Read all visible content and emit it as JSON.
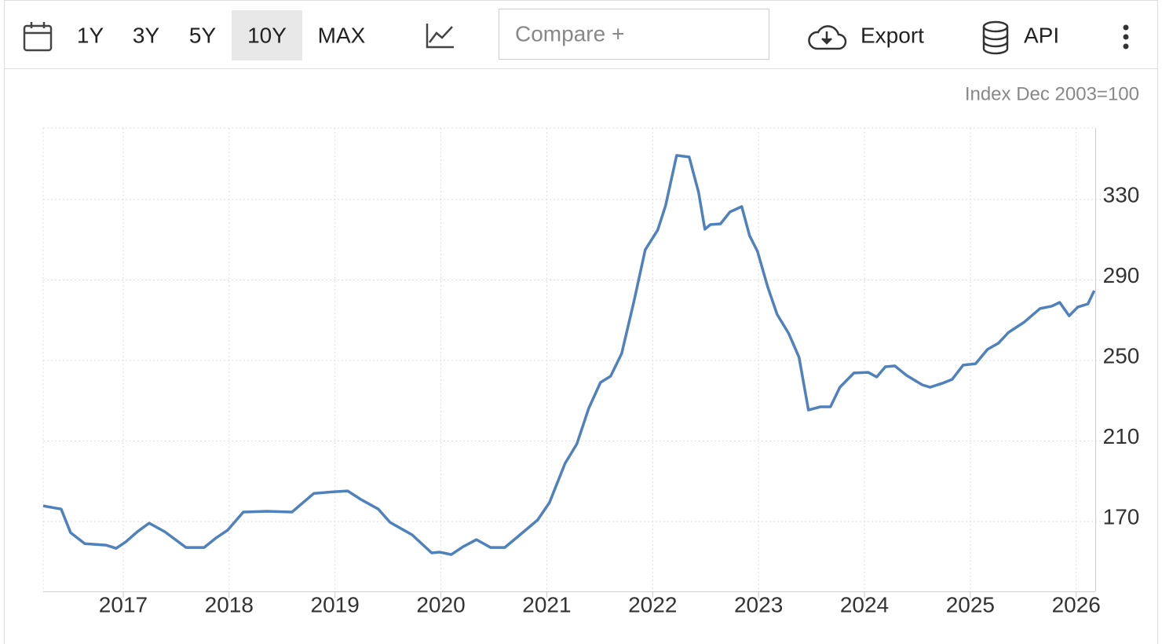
{
  "toolbar": {
    "ranges": [
      "1Y",
      "3Y",
      "5Y",
      "10Y",
      "MAX"
    ],
    "compare": "Compare +",
    "export": "Export",
    "api": "API"
  },
  "chart_data": {
    "type": "line",
    "y_axis_label": "Index Dec 2003=100",
    "grid": true,
    "xlim": [
      2016.244,
      2026.18
    ],
    "xticks": [
      2017,
      2018,
      2019,
      2020,
      2021,
      2022,
      2023,
      2024,
      2025,
      2026
    ],
    "ylim": [
      135.3,
      365.5
    ],
    "yticks": [
      170,
      210,
      250,
      290,
      330
    ],
    "series": [
      {
        "name": "Index",
        "color": "#4f81bd",
        "x": [
          2016.244,
          2016.414,
          2016.503,
          2016.637,
          2016.837,
          2016.933,
          2017.022,
          2017.133,
          2017.245,
          2017.393,
          2017.593,
          2017.764,
          2017.875,
          2017.986,
          2018.134,
          2018.357,
          2018.594,
          2018.801,
          2018.994,
          2019.12,
          2019.246,
          2019.409,
          2019.52,
          2019.728,
          2019.913,
          2019.987,
          2020.099,
          2020.21,
          2020.336,
          2020.469,
          2020.603,
          2020.729,
          2020.914,
          2021.025,
          2021.173,
          2021.285,
          2021.396,
          2021.507,
          2021.603,
          2021.707,
          2021.826,
          2021.93,
          2022.048,
          2022.122,
          2022.226,
          2022.345,
          2022.434,
          2022.493,
          2022.545,
          2022.641,
          2022.73,
          2022.841,
          2022.915,
          2022.99,
          2023.086,
          2023.175,
          2023.286,
          2023.382,
          2023.471,
          2023.583,
          2023.679,
          2023.768,
          2023.901,
          2024.035,
          2024.116,
          2024.198,
          2024.287,
          2024.398,
          2024.546,
          2024.62,
          2024.732,
          2024.828,
          2024.932,
          2025.05,
          2025.162,
          2025.265,
          2025.362,
          2025.51,
          2025.658,
          2025.77,
          2025.844,
          2025.933,
          2026.014,
          2026.11,
          2026.17
        ],
        "values": [
          177.8,
          176.2,
          164.5,
          159,
          158.3,
          156.7,
          159.8,
          164.9,
          169.2,
          164.9,
          157.1,
          157.1,
          161.8,
          165.7,
          174.7,
          175.1,
          174.7,
          184,
          184.8,
          185.2,
          180.9,
          176.2,
          169.6,
          163.4,
          154.4,
          154.8,
          153.6,
          157.5,
          161,
          157.1,
          157.1,
          162.6,
          170.8,
          179.4,
          198.9,
          208.6,
          226.2,
          239.1,
          242.2,
          253.5,
          280,
          305,
          314.8,
          326.9,
          351.9,
          351.1,
          333.5,
          315.2,
          317.5,
          317.9,
          323.8,
          326.5,
          312,
          304.2,
          286.7,
          273,
          263.3,
          251.6,
          225.4,
          227,
          227,
          236.7,
          243.8,
          244.1,
          241.8,
          246.9,
          247.3,
          242.6,
          237.9,
          236.7,
          238.6,
          240.6,
          247.7,
          248.4,
          255.5,
          258.6,
          264,
          269.1,
          275.8,
          277,
          278.9,
          272.2,
          276.5,
          278.1,
          284.7
        ]
      }
    ]
  }
}
